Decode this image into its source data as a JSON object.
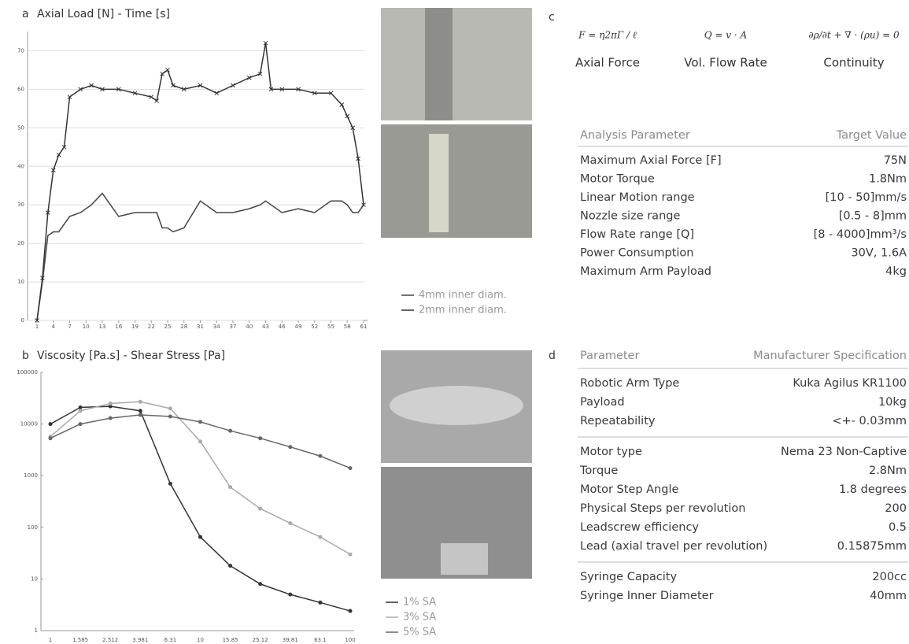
{
  "panel_labels": [
    "a",
    "b",
    "c",
    "d"
  ],
  "chart_data": [
    {
      "type": "line",
      "title": "Axial Load [N] - Time [s]",
      "x": [
        1,
        2,
        3,
        4,
        5,
        6,
        7,
        9,
        11,
        13,
        16,
        19,
        22,
        23,
        24,
        25,
        26,
        28,
        31,
        34,
        37,
        40,
        42,
        43,
        44,
        46,
        49,
        52,
        55,
        57,
        58,
        59,
        60,
        61
      ],
      "xlim": [
        1,
        61
      ],
      "xticks": [
        1,
        4,
        7,
        10,
        13,
        16,
        19,
        22,
        25,
        28,
        31,
        34,
        37,
        40,
        43,
        46,
        49,
        52,
        55,
        58,
        61
      ],
      "ylim": [
        0,
        75
      ],
      "yticks": [
        0,
        10,
        20,
        30,
        40,
        50,
        60,
        70
      ],
      "grid": true,
      "series": [
        {
          "name": "4mm inner diam.",
          "color": "#444444",
          "marker": "none",
          "values": [
            0,
            10,
            22,
            23,
            23,
            25,
            27,
            28,
            30,
            33,
            27,
            28,
            28,
            28,
            24,
            24,
            23,
            24,
            31,
            28,
            28,
            29,
            30,
            31,
            30,
            28,
            29,
            28,
            31,
            31,
            30,
            28,
            28,
            30
          ]
        },
        {
          "name": "2mm inner diam.",
          "color": "#333333",
          "marker": "x",
          "values": [
            0,
            11,
            28,
            39,
            43,
            45,
            58,
            60,
            61,
            60,
            60,
            59,
            58,
            57,
            64,
            65,
            61,
            60,
            61,
            59,
            61,
            63,
            64,
            72,
            60,
            60,
            60,
            59,
            59,
            56,
            53,
            50,
            42,
            30
          ]
        }
      ]
    },
    {
      "type": "line",
      "title": "Viscosity [Pa.s] - Shear Stress [Pa]",
      "categories": [
        "1",
        "1.585",
        "2.512",
        "3.981",
        "6.31",
        "10",
        "15.85",
        "25.12",
        "39.81",
        "63.1",
        "100"
      ],
      "ylog": true,
      "ylim": [
        1,
        100000
      ],
      "yticks": [
        1,
        10,
        100,
        1000,
        10000,
        100000
      ],
      "grid": false,
      "series": [
        {
          "name": "1% SA",
          "color": "#333333",
          "marker": "circle",
          "values": [
            10000,
            21000,
            22000,
            18000,
            700,
            65,
            18,
            8,
            5,
            3.5,
            2.4
          ]
        },
        {
          "name": "3% SA",
          "color": "#aaaaaa",
          "marker": "circle",
          "values": [
            5700,
            18000,
            25000,
            27000,
            20000,
            4600,
            600,
            230,
            120,
            65,
            30
          ]
        },
        {
          "name": "5% SA",
          "color": "#666666",
          "marker": "circle",
          "values": [
            5300,
            10000,
            13000,
            15000,
            14000,
            11000,
            7400,
            5300,
            3600,
            2400,
            1400
          ]
        }
      ]
    }
  ],
  "equations": [
    {
      "formula": "F = η2πΓ / ℓ",
      "caption": "Axial Force"
    },
    {
      "formula": "Q = v · A",
      "caption": "Vol. Flow Rate"
    },
    {
      "formula": "∂ρ/∂t + ∇ · (ρu) = 0",
      "caption": "Continuity"
    }
  ],
  "table_c": {
    "header": [
      "Analysis Parameter",
      "Target Value"
    ],
    "rows": [
      [
        "Maximum Axial Force [F]",
        "75N"
      ],
      [
        "Motor Torque",
        "1.8Nm"
      ],
      [
        "Linear Motion range",
        "[10 - 50]mm/s"
      ],
      [
        "Nozzle size range",
        "[0.5 - 8]mm"
      ],
      [
        "Flow Rate range [Q]",
        "[8 - 4000]mm³/s"
      ],
      [
        "Power Consumption",
        "30V, 1.6A"
      ],
      [
        "Maximum Arm Payload",
        "4kg"
      ]
    ]
  },
  "table_d": {
    "header": [
      "Parameter",
      "Manufacturer Specification"
    ],
    "groups": [
      [
        [
          "Robotic Arm Type",
          "Kuka Agilus KR1100"
        ],
        [
          "Payload",
          "10kg"
        ],
        [
          "Repeatability",
          "<+- 0.03mm"
        ]
      ],
      [
        [
          "Motor type",
          "Nema 23 Non-Captive"
        ],
        [
          "Torque",
          "2.8Nm"
        ],
        [
          "Motor Step Angle",
          "1.8 degrees"
        ],
        [
          "Physical Steps per revolution",
          "200"
        ],
        [
          "Leadscrew efficiency",
          "0.5"
        ],
        [
          "Lead (axial travel per revolution)",
          "0.15875mm"
        ]
      ],
      [
        [
          "Syringe Capacity",
          "200cc"
        ],
        [
          "Syringe Inner Diameter",
          "40mm"
        ]
      ]
    ]
  }
}
